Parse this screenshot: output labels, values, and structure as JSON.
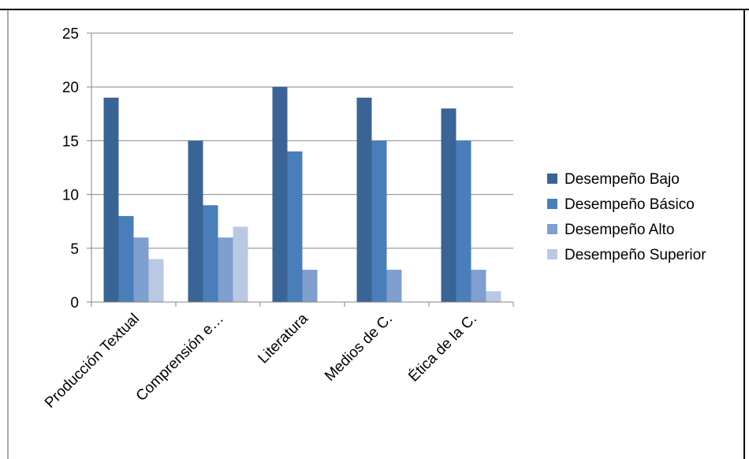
{
  "chart_data": {
    "type": "bar",
    "title": "",
    "xlabel": "",
    "ylabel": "",
    "categories": [
      "Producción Textual",
      "Comprensión e…",
      "Literatura",
      "Medios de C.",
      "Ética de la C."
    ],
    "series": [
      {
        "name": "Desempeño Bajo",
        "values": [
          19,
          15,
          20,
          19,
          18
        ],
        "color": "#3b6496"
      },
      {
        "name": "Desempeño Básico",
        "values": [
          8,
          9,
          14,
          15,
          15
        ],
        "color": "#4a7ebb"
      },
      {
        "name": "Desempeño Alto",
        "values": [
          6,
          6,
          3,
          3,
          3
        ],
        "color": "#7f9fcf"
      },
      {
        "name": "Desempeño Superior",
        "values": [
          4,
          7,
          0,
          0,
          1
        ],
        "color": "#b9c9e3"
      }
    ],
    "ylim": [
      0,
      25
    ],
    "yticks": [
      0,
      5,
      10,
      15,
      20,
      25
    ],
    "grid": true,
    "legend_position": "right"
  }
}
